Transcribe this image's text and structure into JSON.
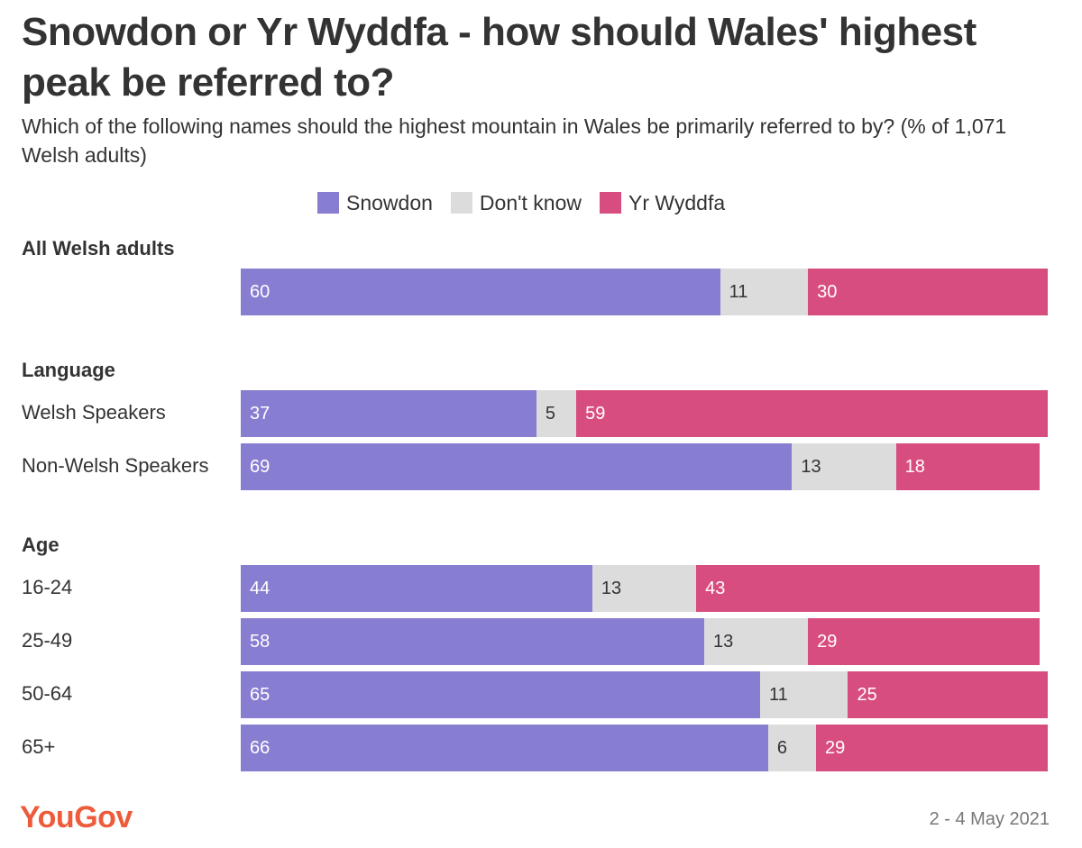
{
  "title": "Snowdon or Yr Wyddfa - how should Wales' highest peak be referred to?",
  "subtitle": "Which of the following names should the highest mountain in Wales be primarily referred to by? (% of 1,071 Welsh adults)",
  "legend": [
    {
      "name": "Snowdon",
      "color": "#877dd1"
    },
    {
      "name": "Don't know",
      "color": "#dcdcdc"
    },
    {
      "name": "Yr Wyddfa",
      "color": "#d84d7f"
    }
  ],
  "footer": {
    "logo": "YouGov",
    "date": "2 - 4 May 2021"
  },
  "chart_data": {
    "type": "bar",
    "orientation": "horizontal",
    "stacked": true,
    "title": "Snowdon or Yr Wyddfa - how should Wales' highest peak be referred to?",
    "xlim": [
      0,
      101
    ],
    "series_names": [
      "Snowdon",
      "Don't know",
      "Yr Wyddfa"
    ],
    "groups": [
      {
        "label": "All Welsh adults",
        "rows": [
          {
            "label": "",
            "values": [
              60,
              11,
              30
            ]
          }
        ]
      },
      {
        "label": "Language",
        "rows": [
          {
            "label": "Welsh Speakers",
            "values": [
              37,
              5,
              59
            ]
          },
          {
            "label": "Non-Welsh Speakers",
            "values": [
              69,
              13,
              18
            ]
          }
        ]
      },
      {
        "label": "Age",
        "rows": [
          {
            "label": "16-24",
            "values": [
              44,
              13,
              43
            ]
          },
          {
            "label": "25-49",
            "values": [
              58,
              13,
              29
            ]
          },
          {
            "label": "50-64",
            "values": [
              65,
              11,
              25
            ]
          },
          {
            "label": "65+",
            "values": [
              66,
              6,
              29
            ]
          }
        ]
      }
    ]
  }
}
